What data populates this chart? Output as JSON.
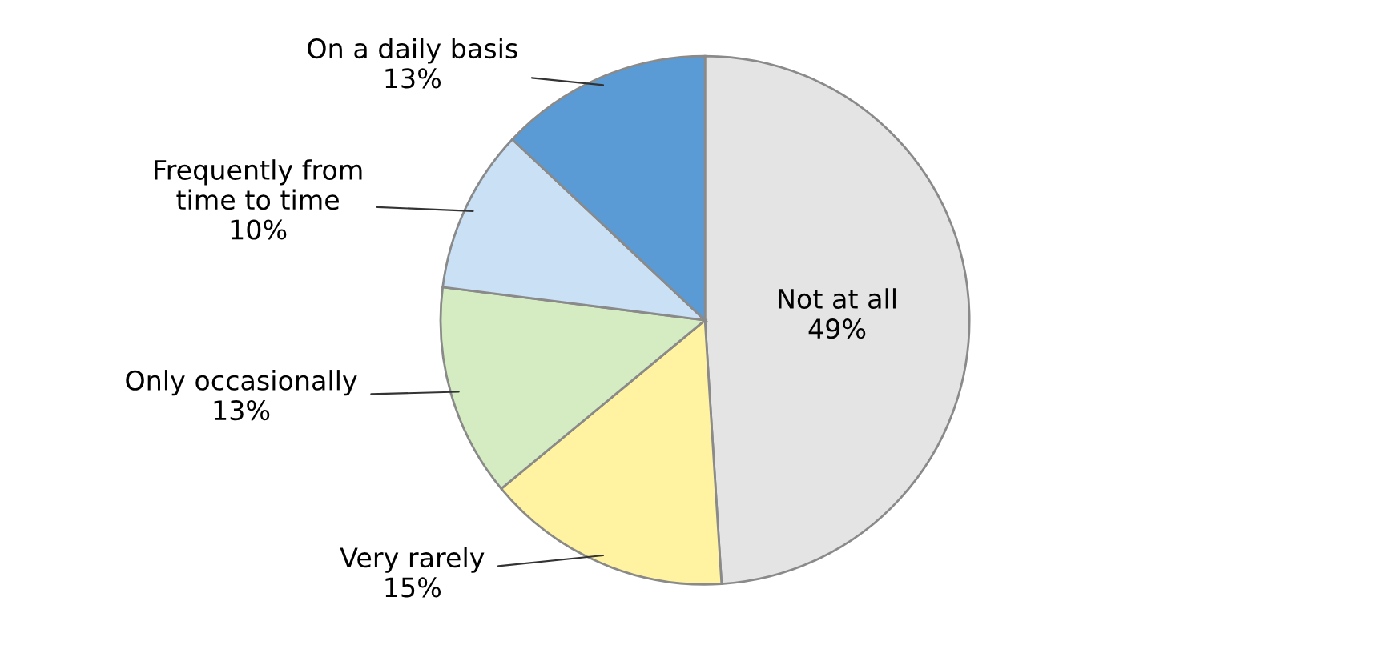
{
  "chart_data": {
    "type": "pie",
    "categories": [
      "Not at all",
      "Very rarely",
      "Only occasionally",
      "Frequently from time to time",
      "On a daily basis"
    ],
    "values": [
      49,
      15,
      13,
      10,
      13
    ],
    "value_labels": [
      "49%",
      "15%",
      "13%",
      "10%",
      "13%"
    ],
    "colors": [
      "#e4e4e4",
      "#fff2a0",
      "#d5ecc2",
      "#c9e0f5",
      "#5b9bd5"
    ]
  }
}
